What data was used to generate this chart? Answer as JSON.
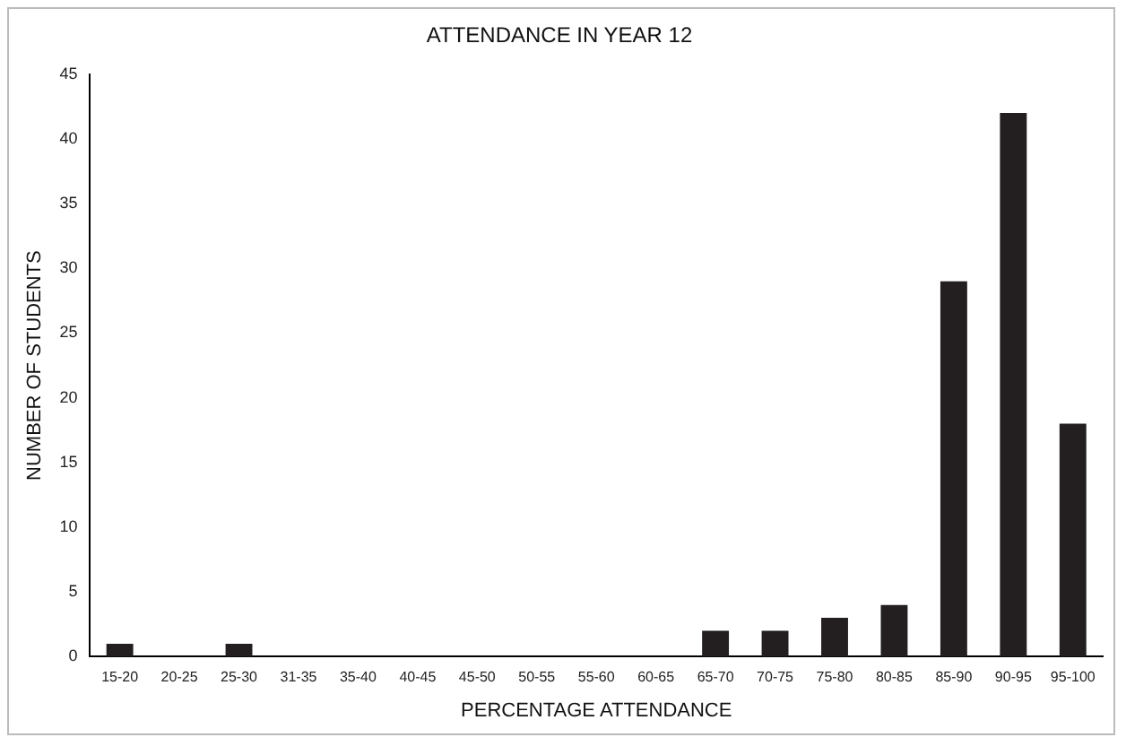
{
  "chart_data": {
    "type": "bar",
    "title": "ATTENDANCE IN YEAR 12",
    "xlabel": "PERCENTAGE ATTENDANCE",
    "ylabel": "NUMBER OF STUDENTS",
    "categories": [
      "15-20",
      "20-25",
      "25-30",
      "31-35",
      "35-40",
      "40-45",
      "45-50",
      "50-55",
      "55-60",
      "60-65",
      "65-70",
      "70-75",
      "75-80",
      "80-85",
      "85-90",
      "90-95",
      "95-100"
    ],
    "values": [
      1,
      0,
      1,
      0,
      0,
      0,
      0,
      0,
      0,
      0,
      2,
      2,
      3,
      4,
      29,
      42,
      18
    ],
    "color": "#231f20",
    "ylim": [
      0,
      45
    ],
    "yticks": [
      0,
      5,
      10,
      15,
      20,
      25,
      30,
      35,
      40,
      45
    ],
    "grid": false,
    "legend": false
  }
}
